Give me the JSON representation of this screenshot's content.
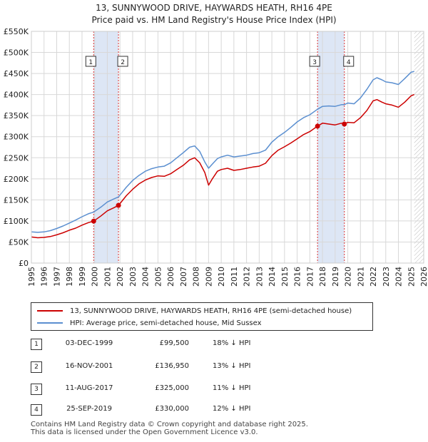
{
  "title_line1": "13, SUNNYWOOD DRIVE, HAYWARDS HEATH, RH16 4PE",
  "title_line2": "Price paid vs. HM Land Registry's House Price Index (HPI)",
  "colors": {
    "property": "#cc0000",
    "hpi": "#5b8fd0",
    "shade": "#dde6f5",
    "grid": "#d8d8d8",
    "vline": "#dd3333"
  },
  "legend": {
    "property": "13, SUNNYWOOD DRIVE, HAYWARDS HEATH, RH16 4PE (semi-detached house)",
    "hpi": "HPI: Average price, semi-detached house, Mid Sussex"
  },
  "transactions": [
    {
      "num": "1",
      "date": "03-DEC-1999",
      "price": "£99,500",
      "hpi": "18% ↓ HPI"
    },
    {
      "num": "2",
      "date": "16-NOV-2001",
      "price": "£136,950",
      "hpi": "13% ↓ HPI"
    },
    {
      "num": "3",
      "date": "11-AUG-2017",
      "price": "£325,000",
      "hpi": "11% ↓ HPI"
    },
    {
      "num": "4",
      "date": "25-SEP-2019",
      "price": "£330,000",
      "hpi": "12% ↓ HPI"
    }
  ],
  "footer_line1": "Contains HM Land Registry data © Crown copyright and database right 2025.",
  "footer_line2": "This data is licensed under the Open Government Licence v3.0.",
  "chart_data": {
    "type": "line",
    "title": "13, SUNNYWOOD DRIVE, HAYWARDS HEATH, RH16 4PE",
    "subtitle": "Price paid vs. HM Land Registry's House Price Index (HPI)",
    "xlabel": "",
    "ylabel": "",
    "xlim": [
      1995,
      2026
    ],
    "ylim": [
      0,
      550000
    ],
    "x_ticks": [
      1995,
      1996,
      1997,
      1998,
      1999,
      2000,
      2001,
      2002,
      2003,
      2004,
      2005,
      2006,
      2007,
      2008,
      2009,
      2010,
      2011,
      2012,
      2013,
      2014,
      2015,
      2016,
      2017,
      2018,
      2019,
      2020,
      2021,
      2022,
      2023,
      2024,
      2025,
      2026
    ],
    "y_ticks": [
      0,
      50000,
      100000,
      150000,
      200000,
      250000,
      300000,
      350000,
      400000,
      450000,
      500000,
      550000
    ],
    "y_tick_labels": [
      "£0",
      "£50K",
      "£100K",
      "£150K",
      "£200K",
      "£250K",
      "£300K",
      "£350K",
      "£400K",
      "£450K",
      "£500K",
      "£550K"
    ],
    "grid": true,
    "series": [
      {
        "name": "13, SUNNYWOOD DRIVE, HAYWARDS HEATH, RH16 4PE (semi-detached house)",
        "x": [
          1995,
          1995.5,
          1996,
          1996.5,
          1997,
          1997.5,
          1998,
          1998.5,
          1999,
          1999.5,
          1999.92,
          2000.5,
          2001,
          2001.5,
          2001.88,
          2002.5,
          2003,
          2003.5,
          2004,
          2004.5,
          2005,
          2005.5,
          2006,
          2006.5,
          2007,
          2007.5,
          2007.9,
          2008.3,
          2008.7,
          2009.0,
          2009.3,
          2009.7,
          2010,
          2010.5,
          2011,
          2011.5,
          2012,
          2012.5,
          2013,
          2013.5,
          2014,
          2014.5,
          2015,
          2015.5,
          2016,
          2016.5,
          2017,
          2017.6,
          2018,
          2018.5,
          2019,
          2019.5,
          2019.73,
          2020,
          2020.5,
          2021,
          2021.5,
          2022,
          2022.3,
          2022.7,
          2023,
          2023.5,
          2024,
          2024.5,
          2025,
          2025.25
        ],
        "values": [
          62000,
          60000,
          61000,
          63000,
          67000,
          72000,
          78000,
          83000,
          90000,
          96000,
          99500,
          112000,
          124000,
          131000,
          136950,
          160000,
          175000,
          188000,
          197000,
          203000,
          207000,
          206000,
          212000,
          222000,
          232000,
          245000,
          250000,
          238000,
          215000,
          185000,
          200000,
          218000,
          222000,
          225000,
          220000,
          222000,
          225000,
          228000,
          230000,
          237000,
          255000,
          268000,
          276000,
          285000,
          295000,
          305000,
          312000,
          325000,
          332000,
          330000,
          328000,
          332000,
          330000,
          334000,
          333000,
          345000,
          362000,
          385000,
          388000,
          382000,
          378000,
          375000,
          370000,
          382000,
          397000,
          400000
        ]
      },
      {
        "name": "HPI: Average price, semi-detached house, Mid Sussex",
        "x": [
          1995,
          1995.5,
          1996,
          1996.5,
          1997,
          1997.5,
          1998,
          1998.5,
          1999,
          1999.5,
          1999.92,
          2000.5,
          2001,
          2001.5,
          2001.88,
          2002.5,
          2003,
          2003.5,
          2004,
          2004.5,
          2005,
          2005.5,
          2006,
          2006.5,
          2007,
          2007.5,
          2007.9,
          2008.3,
          2008.7,
          2009.0,
          2009.3,
          2009.7,
          2010,
          2010.5,
          2011,
          2011.5,
          2012,
          2012.5,
          2013,
          2013.5,
          2014,
          2014.5,
          2015,
          2015.5,
          2016,
          2016.5,
          2017,
          2017.6,
          2018,
          2018.5,
          2019,
          2019.5,
          2019.73,
          2020,
          2020.5,
          2021,
          2021.5,
          2022,
          2022.3,
          2022.7,
          2023,
          2023.5,
          2024,
          2024.5,
          2025,
          2025.25
        ],
        "values": [
          74000,
          73000,
          74000,
          77000,
          82000,
          88000,
          95000,
          102000,
          110000,
          117000,
          121000,
          133000,
          145000,
          152000,
          157000,
          180000,
          196000,
          208000,
          218000,
          224000,
          228000,
          230000,
          238000,
          250000,
          262000,
          275000,
          278000,
          265000,
          240000,
          225000,
          235000,
          248000,
          252000,
          256000,
          252000,
          254000,
          256000,
          260000,
          262000,
          268000,
          287000,
          300000,
          310000,
          322000,
          335000,
          345000,
          352000,
          365000,
          372000,
          373000,
          372000,
          376000,
          376000,
          380000,
          378000,
          392000,
          412000,
          435000,
          440000,
          435000,
          430000,
          428000,
          424000,
          438000,
          453000,
          455000
        ]
      }
    ],
    "sale_points": [
      {
        "label": "1",
        "x": 1999.92,
        "value": 99500
      },
      {
        "label": "2",
        "x": 2001.88,
        "value": 136950
      },
      {
        "label": "3",
        "x": 2017.61,
        "value": 325000
      },
      {
        "label": "4",
        "x": 2019.73,
        "value": 330000
      }
    ],
    "shaded_ranges": [
      [
        1999.92,
        2001.88
      ],
      [
        2017.61,
        2019.73
      ]
    ],
    "forecast_start": 2025.25
  }
}
